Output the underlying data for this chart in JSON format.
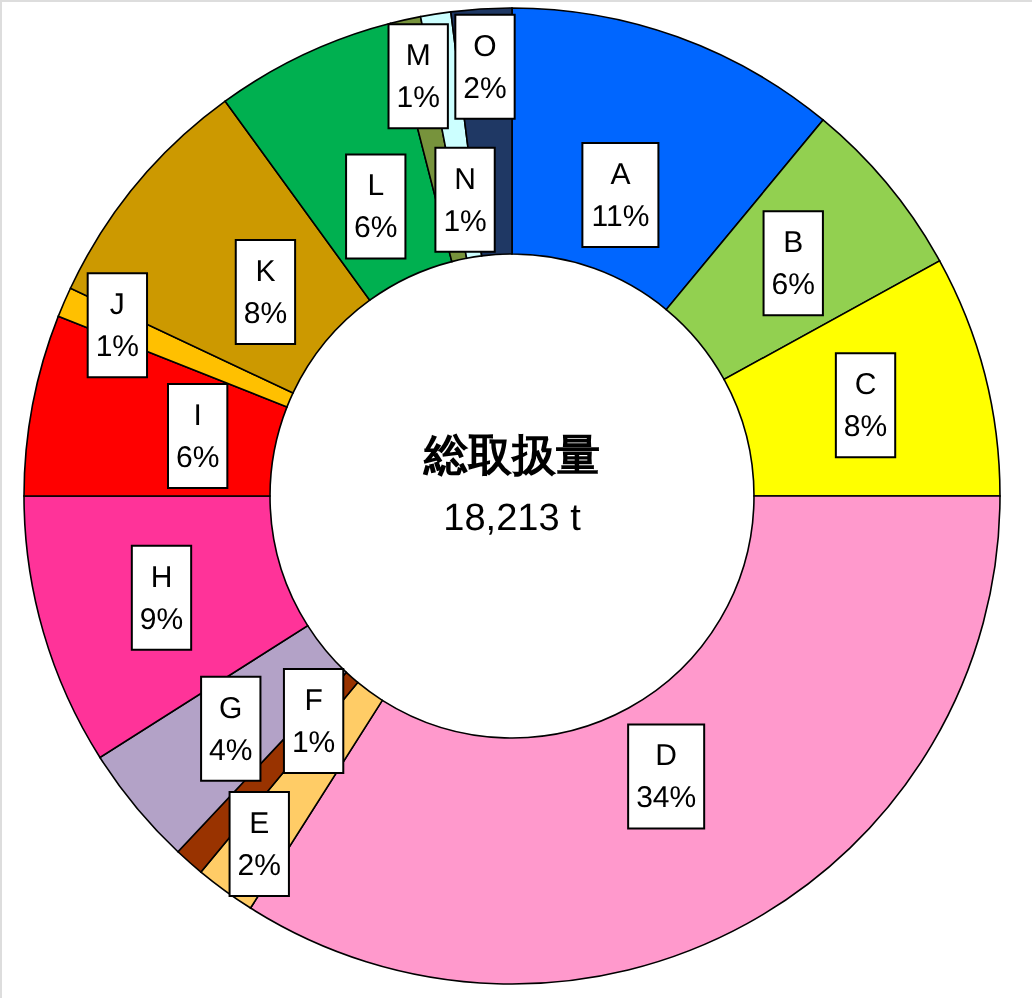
{
  "chart_data": {
    "type": "donut",
    "title": "総取扱量",
    "subtitle": "18,213 t",
    "categories": [
      "A",
      "B",
      "C",
      "D",
      "E",
      "F",
      "G",
      "H",
      "I",
      "J",
      "K",
      "L",
      "M",
      "N",
      "O"
    ],
    "values": [
      11,
      6,
      8,
      34,
      2,
      1,
      4,
      9,
      6,
      1,
      8,
      6,
      1,
      1,
      2
    ],
    "colors": [
      "#0066ff",
      "#92d050",
      "#ffff00",
      "#ff99cc",
      "#ffcc66",
      "#993300",
      "#b3a2c7",
      "#ff3399",
      "#ff0000",
      "#ffc000",
      "#cc9900",
      "#00b050",
      "#77933c",
      "#ccffff",
      "#1f3864"
    ],
    "value_labels": [
      "11%",
      "6%",
      "8%",
      "34%",
      "2%",
      "1%",
      "4%",
      "9%",
      "6%",
      "1%",
      "8%",
      "6%",
      "1%",
      "1%",
      "2%"
    ]
  }
}
